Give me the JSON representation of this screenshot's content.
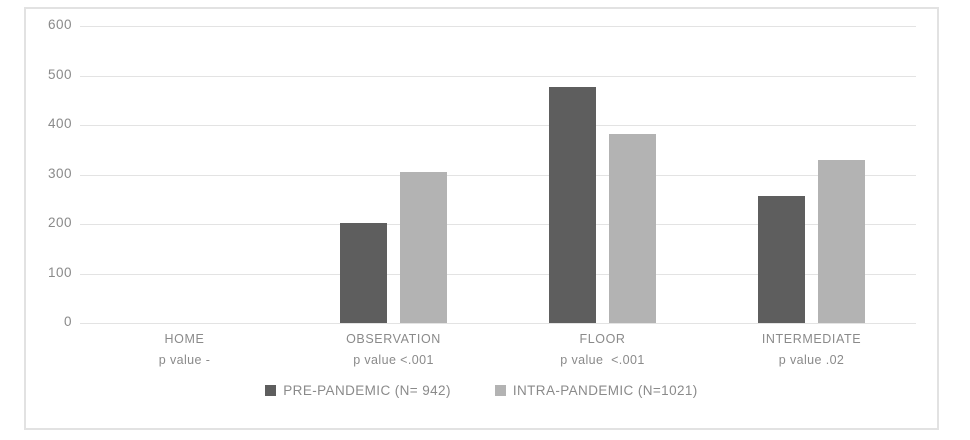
{
  "chart_data": {
    "type": "bar",
    "title": "",
    "categories": [
      "HOME",
      "OBSERVATION",
      "FLOOR",
      "INTERMEDIATE"
    ],
    "category_sublabels": [
      "p value -",
      "p value <.001",
      "p value  <.001",
      "p value .02"
    ],
    "series": [
      {
        "name": "PRE-PANDEMIC (N= 942)",
        "color": "#5e5e5e",
        "values": [
          0,
          203,
          476,
          257
        ]
      },
      {
        "name": "INTRA-PANDEMIC (N=1021)",
        "color": "#b3b3b3",
        "values": [
          0,
          306,
          381,
          329
        ]
      }
    ],
    "xlabel": "",
    "ylabel": "",
    "ylim": [
      0,
      600
    ],
    "yticks": [
      0,
      100,
      200,
      300,
      400,
      500,
      600
    ],
    "grid": true,
    "legend_position": "bottom",
    "colors": {
      "grid": "#e3e3e3",
      "text": "#8a8a8a",
      "frame_border": "#e2e2e2",
      "background": "#ffffff"
    }
  }
}
